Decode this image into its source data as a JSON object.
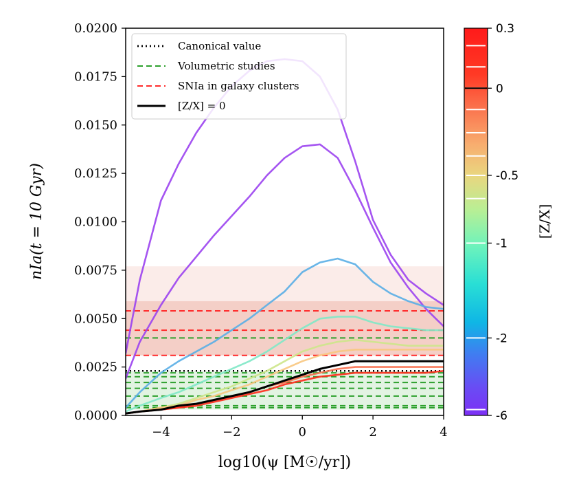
{
  "chart_data": {
    "type": "line",
    "title": "",
    "xlabel": "log10(ψ [M☉/yr])",
    "ylabel": "nIa(t = 10 Gyr)",
    "xlim": [
      -5,
      4
    ],
    "ylim": [
      0,
      0.02
    ],
    "x_ticks": [
      -4,
      -2,
      0,
      2,
      4
    ],
    "x_tick_labels": [
      "−4",
      "−2",
      "0",
      "2",
      "4"
    ],
    "y_ticks": [
      0,
      0.0025,
      0.005,
      0.0075,
      0.01,
      0.0125,
      0.015,
      0.0175,
      0.02
    ],
    "y_tick_labels": [
      "0.0000",
      "0.0025",
      "0.0050",
      "0.0075",
      "0.0100",
      "0.0125",
      "0.0150",
      "0.0175",
      "0.0200"
    ],
    "legend": {
      "placement": "top-left",
      "entries": [
        {
          "label": "Canonical value",
          "style": "dotted",
          "color": "#000000"
        },
        {
          "label": "Volumetric studies",
          "style": "dashed",
          "color": "#2ca02c"
        },
        {
          "label": "SNIa in galaxy clusters",
          "style": "dashed",
          "color": "#ff2a2a"
        },
        {
          "label": "[Z/X] = 0",
          "style": "solid",
          "color": "#000000"
        }
      ]
    },
    "bands": [
      {
        "name": "clusters-band-outer",
        "y0": 0.0031,
        "y1": 0.0077,
        "color": "#f6cfc8",
        "opacity": 0.4
      },
      {
        "name": "clusters-band-inner",
        "y0": 0.0031,
        "y1": 0.0059,
        "color": "#e79a8a",
        "opacity": 0.35
      },
      {
        "name": "volumetric-band",
        "y0": 0.0003,
        "y1": 0.0023,
        "color": "#9fd69f",
        "opacity": 0.3
      }
    ],
    "hlines": [
      {
        "y": 0.0023,
        "style": "dotted",
        "color": "#000000"
      },
      {
        "y": 0.0054,
        "style": "dashed",
        "color": "#ff2a2a"
      },
      {
        "y": 0.0044,
        "style": "dashed",
        "color": "#ff2a2a"
      },
      {
        "y": 0.0031,
        "style": "dashed",
        "color": "#ff2a2a"
      },
      {
        "y": 0.004,
        "style": "dashed",
        "color": "#2ca02c"
      },
      {
        "y": 0.0022,
        "style": "dashed",
        "color": "#2ca02c"
      },
      {
        "y": 0.002,
        "style": "dashed",
        "color": "#2ca02c"
      },
      {
        "y": 0.0017,
        "style": "dashed",
        "color": "#2ca02c"
      },
      {
        "y": 0.0014,
        "style": "dashed",
        "color": "#2ca02c"
      },
      {
        "y": 0.001,
        "style": "dashed",
        "color": "#2ca02c"
      },
      {
        "y": 0.0005,
        "style": "dashed",
        "color": "#2ca02c"
      },
      {
        "y": 0.0004,
        "style": "dashed",
        "color": "#2ca02c"
      }
    ],
    "x": [
      -5,
      -4.6,
      -4,
      -3.5,
      -3,
      -2.5,
      -2,
      -1.5,
      -1,
      -0.5,
      0,
      0.5,
      1,
      1.5,
      2,
      2.5,
      3,
      3.5,
      4
    ],
    "series": [
      {
        "name": "Z-X = -6 (upper)",
        "color": "#9b42f0",
        "values": [
          0.0032,
          0.007,
          0.0111,
          0.013,
          0.0146,
          0.0159,
          0.017,
          0.0178,
          0.0183,
          0.0184,
          0.0183,
          0.0175,
          0.0158,
          0.0131,
          0.0101,
          0.0083,
          0.007,
          0.0063,
          0.0057
        ]
      },
      {
        "name": "Z-X = -6 (lower)",
        "color": "#9b42f0",
        "values": [
          0.0019,
          0.0038,
          0.0057,
          0.0071,
          0.0082,
          0.0093,
          0.0103,
          0.0113,
          0.0124,
          0.0133,
          0.0139,
          0.014,
          0.0133,
          0.0116,
          0.0097,
          0.0079,
          0.0066,
          0.0055,
          0.0046
        ]
      },
      {
        "name": "Z-X = -2",
        "color": "#59aee6",
        "values": [
          0.0004,
          0.0012,
          0.0022,
          0.0028,
          0.0033,
          0.0038,
          0.0044,
          0.005,
          0.0057,
          0.0064,
          0.0074,
          0.0079,
          0.0081,
          0.0078,
          0.0069,
          0.0063,
          0.0059,
          0.0056,
          0.0055
        ]
      },
      {
        "name": "Z-X = -1",
        "color": "#7fe8c6",
        "values": [
          0.0002,
          0.0005,
          0.0009,
          0.0012,
          0.0016,
          0.002,
          0.0024,
          0.0028,
          0.0033,
          0.0039,
          0.0045,
          0.005,
          0.0051,
          0.0051,
          0.0048,
          0.0046,
          0.0045,
          0.0044,
          0.0044
        ]
      },
      {
        "name": "Z-X = -0.5",
        "color": "#cde68a",
        "values": [
          0.0001,
          0.0002,
          0.0004,
          0.0006,
          0.0009,
          0.0012,
          0.0015,
          0.0019,
          0.0023,
          0.0028,
          0.0033,
          0.0036,
          0.0038,
          0.0039,
          0.0038,
          0.0037,
          0.0036,
          0.0036,
          0.0036
        ]
      },
      {
        "name": "Z-X = -0.3",
        "color": "#f8c77f",
        "values": [
          0.0001,
          0.0002,
          0.0004,
          0.0005,
          0.0008,
          0.001,
          0.0013,
          0.0016,
          0.002,
          0.0024,
          0.0028,
          0.0031,
          0.0033,
          0.0034,
          0.0034,
          0.0034,
          0.0034,
          0.0034,
          0.0034
        ]
      },
      {
        "name": "Z-X = 0.1",
        "color": "#fa6e4c",
        "values": [
          0.0001,
          0.0002,
          0.0003,
          0.0004,
          0.0006,
          0.0008,
          0.001,
          0.0012,
          0.0015,
          0.0017,
          0.002,
          0.0022,
          0.0024,
          0.0025,
          0.0025,
          0.0025,
          0.0025,
          0.0025,
          0.0025
        ]
      },
      {
        "name": "Z-X = 0.3",
        "color": "#ff2a1a",
        "values": [
          0.0001,
          0.0002,
          0.0003,
          0.0004,
          0.0005,
          0.0007,
          0.0009,
          0.0011,
          0.0013,
          0.0016,
          0.0018,
          0.002,
          0.0021,
          0.0022,
          0.0022,
          0.0022,
          0.0022,
          0.0022,
          0.0023
        ]
      },
      {
        "name": "[Z/X] = 0",
        "color": "#000000",
        "values": [
          0.0001,
          0.0002,
          0.0003,
          0.0005,
          0.0006,
          0.0008,
          0.001,
          0.0012,
          0.0015,
          0.0018,
          0.0021,
          0.0024,
          0.0026,
          0.0028,
          0.0028,
          0.0028,
          0.0028,
          0.0028,
          0.0028
        ]
      }
    ],
    "colorbar": {
      "label": "[Z/X]",
      "tick_labels": [
        "0.3",
        "0",
        "-0.5",
        "-1",
        "-2",
        "-6"
      ],
      "tick_values": [
        0.3,
        0,
        -0.5,
        -1,
        -2,
        -6
      ],
      "tick_fractions": [
        0,
        0.155,
        0.38,
        0.555,
        0.8,
        1
      ],
      "white_marker_fractions": [
        0.045,
        0.1,
        0.155,
        0.21,
        0.27,
        0.33,
        0.38,
        0.44,
        0.555,
        0.8,
        0.985
      ],
      "gradient_stops": [
        {
          "offset": 0,
          "color": "#ff1a1a"
        },
        {
          "offset": 0.12,
          "color": "#ff3a25"
        },
        {
          "offset": 0.2,
          "color": "#fb6f4b"
        },
        {
          "offset": 0.3,
          "color": "#f8ad6f"
        },
        {
          "offset": 0.38,
          "color": "#e9d67f"
        },
        {
          "offset": 0.47,
          "color": "#b8ef95"
        },
        {
          "offset": 0.56,
          "color": "#6ff3bb"
        },
        {
          "offset": 0.66,
          "color": "#29dfd5"
        },
        {
          "offset": 0.76,
          "color": "#0fb6e5"
        },
        {
          "offset": 0.84,
          "color": "#3f7ef1"
        },
        {
          "offset": 0.93,
          "color": "#6a4bf4"
        },
        {
          "offset": 1,
          "color": "#7d30f5"
        }
      ]
    }
  }
}
